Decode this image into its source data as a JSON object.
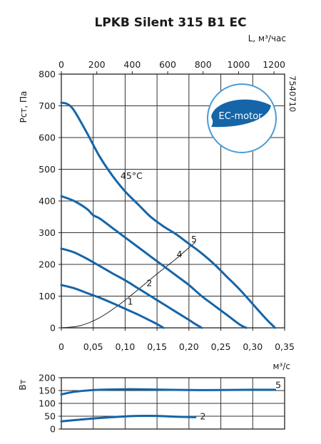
{
  "page": {
    "title": "LPKB Silent 315 B1 EC",
    "code": "7540710",
    "badge": {
      "text": "EC-motor",
      "circle_color": "#4a9cd6",
      "leaf_color": "#1565a8"
    }
  },
  "chart_data": [
    {
      "type": "line",
      "ylabel": "Pст, Па",
      "xlabel": "м³/с",
      "x2label": "L, м³/час",
      "xlim": [
        0,
        0.35
      ],
      "ylim": [
        0,
        800
      ],
      "x_ticks": [
        "0",
        "0,05",
        "0,10",
        "0,15",
        "0,20",
        "0,25",
        "0,30",
        "0,35"
      ],
      "x_tick_values": [
        0,
        0.05,
        0.1,
        0.15,
        0.2,
        0.25,
        0.3,
        0.35
      ],
      "x2_ticks": [
        "0",
        "200",
        "400",
        "600",
        "800",
        "1000",
        "1200"
      ],
      "x2_tick_values": [
        0,
        200,
        400,
        600,
        800,
        1000,
        1200
      ],
      "y_ticks": [
        "0",
        "100",
        "200",
        "300",
        "400",
        "500",
        "600",
        "700",
        "800"
      ],
      "y_tick_values": [
        0,
        100,
        200,
        300,
        400,
        500,
        600,
        700,
        800
      ],
      "grid": true,
      "color": "#1565a8",
      "series": [
        {
          "name": "5",
          "label": "45°C",
          "x": [
            0,
            0.01,
            0.02,
            0.04,
            0.06,
            0.08,
            0.1,
            0.12,
            0.14,
            0.16,
            0.18,
            0.2,
            0.22,
            0.24,
            0.26,
            0.28,
            0.3,
            0.32,
            0.335
          ],
          "y": [
            710,
            705,
            685,
            615,
            540,
            480,
            430,
            390,
            350,
            320,
            295,
            265,
            235,
            200,
            160,
            120,
            75,
            30,
            0
          ]
        },
        {
          "name": "4",
          "x": [
            0,
            0.02,
            0.04,
            0.05,
            0.06,
            0.08,
            0.1,
            0.12,
            0.14,
            0.16,
            0.18,
            0.2,
            0.22,
            0.24,
            0.26,
            0.28,
            0.29
          ],
          "y": [
            415,
            400,
            375,
            355,
            345,
            315,
            285,
            255,
            225,
            195,
            165,
            135,
            100,
            70,
            40,
            10,
            0
          ]
        },
        {
          "name": "2",
          "x": [
            0,
            0.02,
            0.04,
            0.06,
            0.08,
            0.1,
            0.12,
            0.14,
            0.16,
            0.18,
            0.2,
            0.21,
            0.22
          ],
          "y": [
            250,
            238,
            218,
            195,
            172,
            150,
            125,
            100,
            75,
            50,
            25,
            12,
            0
          ]
        },
        {
          "name": "1",
          "x": [
            0,
            0.02,
            0.04,
            0.06,
            0.08,
            0.1,
            0.12,
            0.14,
            0.15,
            0.16
          ],
          "y": [
            135,
            125,
            110,
            95,
            78,
            60,
            42,
            22,
            12,
            0
          ]
        }
      ],
      "system_curve": {
        "x": [
          0,
          0.03,
          0.06,
          0.09,
          0.12,
          0.15,
          0.18,
          0.21
        ],
        "y": [
          0,
          7,
          32,
          72,
          120,
          170,
          218,
          270
        ]
      },
      "curve_labels": [
        {
          "text": "45°C",
          "x": 0.11,
          "y": 470
        },
        {
          "text": "5",
          "x": 0.208,
          "y": 270
        },
        {
          "text": "4",
          "x": 0.185,
          "y": 222
        },
        {
          "text": "2",
          "x": 0.138,
          "y": 132
        },
        {
          "text": "1",
          "x": 0.108,
          "y": 73
        }
      ]
    },
    {
      "type": "line",
      "ylabel": "Вт",
      "xlim": [
        0,
        0.35
      ],
      "ylim": [
        0,
        200
      ],
      "y_ticks": [
        "0",
        "50",
        "100",
        "150",
        "200"
      ],
      "y_tick_values": [
        0,
        50,
        100,
        150,
        200
      ],
      "grid": true,
      "color": "#1565a8",
      "series": [
        {
          "name": "5",
          "x": [
            0,
            0.02,
            0.05,
            0.1,
            0.15,
            0.2,
            0.25,
            0.3,
            0.335
          ],
          "y": [
            135,
            145,
            152,
            155,
            154,
            152,
            152,
            153,
            153
          ]
        },
        {
          "name": "2",
          "x": [
            0,
            0.03,
            0.06,
            0.09,
            0.12,
            0.15,
            0.18,
            0.21
          ],
          "y": [
            30,
            37,
            43,
            48,
            51,
            51,
            48,
            46
          ]
        }
      ],
      "curve_labels": [
        {
          "text": "5",
          "x": 0.34,
          "y": 160
        },
        {
          "text": "2",
          "x": 0.222,
          "y": 38
        }
      ]
    }
  ]
}
